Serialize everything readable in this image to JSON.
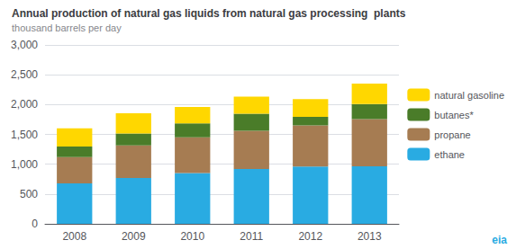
{
  "chart_data": {
    "type": "bar",
    "title": "Annual production of natural gas liquids from natural gas processing  plants",
    "subtitle": "thousand barrels per day",
    "categories": [
      "2008",
      "2009",
      "2010",
      "2011",
      "2012",
      "2013"
    ],
    "series": [
      {
        "name": "ethane",
        "color": "#29ABE2",
        "values": [
          680,
          770,
          850,
          920,
          960,
          965
        ]
      },
      {
        "name": "propane",
        "color": "#A67C52",
        "values": [
          440,
          545,
          600,
          640,
          690,
          790
        ]
      },
      {
        "name": "butanes*",
        "color": "#4A7C29",
        "values": [
          175,
          200,
          235,
          285,
          145,
          255
        ]
      },
      {
        "name": "natural gasoline",
        "color": "#FFD700",
        "values": [
          305,
          340,
          275,
          290,
          295,
          340
        ]
      }
    ],
    "stacked": true,
    "ylim": [
      0,
      3000
    ],
    "yticks": [
      0,
      500,
      {
        "value": 1000,
        "label": "1,000"
      },
      {
        "value": 1500,
        "label": "1,500"
      },
      {
        "value": 2000,
        "label": "2,000"
      },
      {
        "value": 2500,
        "label": "2,500"
      },
      {
        "value": 3000,
        "label": "3,000"
      }
    ],
    "grid": true,
    "legend": "right",
    "annotations": [
      "eia"
    ]
  }
}
